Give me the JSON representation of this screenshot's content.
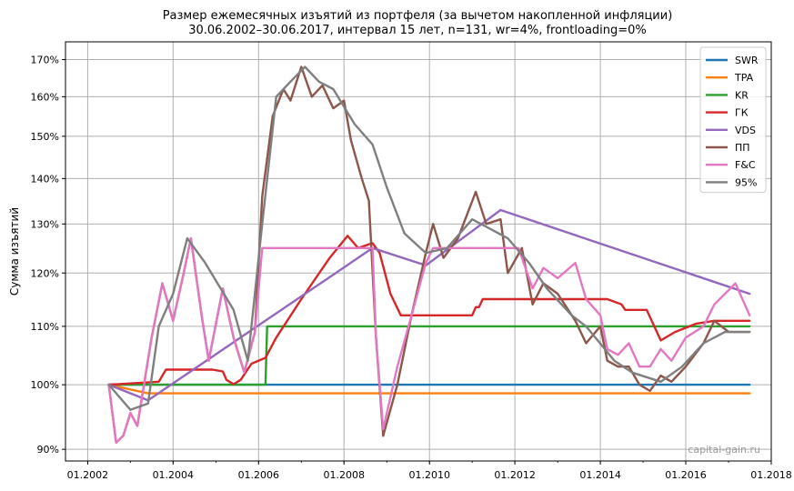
{
  "chart_data": {
    "type": "line",
    "title": "Размер ежемесячных изъятий из портфеля (за вычетом накопленной инфляции)",
    "subtitle": "30.06.2002–30.06.2017, интервал 15 лет, n=131, wr=4%, frontloading=0%",
    "ylabel": "Сумма изъятий",
    "xlabel": "",
    "y_scale": "log",
    "ylim": [
      88.3,
      175
    ],
    "xlim": [
      "2001-06-25",
      "2018-01-01"
    ],
    "x_ticks": [
      {
        "date": "2002-01-01",
        "label": "01.2002"
      },
      {
        "date": "2004-01-01",
        "label": "01.2004"
      },
      {
        "date": "2006-01-01",
        "label": "01.2006"
      },
      {
        "date": "2008-01-01",
        "label": "01.2008"
      },
      {
        "date": "2010-01-01",
        "label": "01.2010"
      },
      {
        "date": "2012-01-01",
        "label": "01.2012"
      },
      {
        "date": "2014-01-01",
        "label": "01.2014"
      },
      {
        "date": "2016-01-01",
        "label": "01.2016"
      },
      {
        "date": "2018-01-01",
        "label": "01.2018"
      }
    ],
    "y_ticks": [
      {
        "value": 90,
        "label": "90%"
      },
      {
        "value": 100,
        "label": "100%"
      },
      {
        "value": 110,
        "label": "110%"
      },
      {
        "value": 120,
        "label": "120%"
      },
      {
        "value": 130,
        "label": "130%"
      },
      {
        "value": 140,
        "label": "140%"
      },
      {
        "value": 150,
        "label": "150%"
      },
      {
        "value": 160,
        "label": "160%"
      },
      {
        "value": 170,
        "label": "170%"
      }
    ],
    "grid": true,
    "legend_position": "top-right",
    "watermark": "capital-gain.ru",
    "series": [
      {
        "name": "SWR",
        "color": "#1f77b4",
        "points": [
          [
            "2002-06-30",
            100
          ],
          [
            "2017-06-30",
            100
          ]
        ]
      },
      {
        "name": "TPA",
        "color": "#ff7f0e",
        "points": [
          [
            "2002-06-30",
            100
          ],
          [
            "2003-06-01",
            98.6
          ],
          [
            "2017-06-30",
            98.6
          ]
        ]
      },
      {
        "name": "KR",
        "color": "#2ca02c",
        "points": [
          [
            "2002-06-30",
            100
          ],
          [
            "2006-03-01",
            100
          ],
          [
            "2006-03-15",
            110
          ],
          [
            "2017-06-30",
            110
          ]
        ]
      },
      {
        "name": "ГК",
        "color": "#d62728",
        "points": [
          [
            "2002-06-30",
            100
          ],
          [
            "2003-09-01",
            100.5
          ],
          [
            "2003-11-01",
            102.5
          ],
          [
            "2004-12-01",
            102.5
          ],
          [
            "2005-03-01",
            102.2
          ],
          [
            "2005-04-01",
            100.8
          ],
          [
            "2005-06-01",
            100.1
          ],
          [
            "2005-08-01",
            100.8
          ],
          [
            "2005-11-01",
            103.5
          ],
          [
            "2006-03-01",
            104.5
          ],
          [
            "2006-06-01",
            108
          ],
          [
            "2007-01-01",
            115
          ],
          [
            "2007-09-01",
            123
          ],
          [
            "2008-02-01",
            127.5
          ],
          [
            "2008-05-01",
            125
          ],
          [
            "2008-09-01",
            126
          ],
          [
            "2008-11-01",
            124
          ],
          [
            "2009-02-01",
            116
          ],
          [
            "2009-05-01",
            112
          ],
          [
            "2009-09-01",
            112
          ],
          [
            "2010-01-01",
            112
          ],
          [
            "2011-01-01",
            112
          ],
          [
            "2011-02-01",
            113.5
          ],
          [
            "2011-03-01",
            113.5
          ],
          [
            "2011-04-01",
            115
          ],
          [
            "2012-06-01",
            115
          ],
          [
            "2013-01-01",
            115
          ],
          [
            "2014-03-01",
            115
          ],
          [
            "2014-07-01",
            114
          ],
          [
            "2014-08-01",
            113
          ],
          [
            "2015-02-01",
            113
          ],
          [
            "2015-06-01",
            107.5
          ],
          [
            "2015-10-01",
            109
          ],
          [
            "2016-04-01",
            110.5
          ],
          [
            "2016-09-01",
            111
          ],
          [
            "2017-06-30",
            111
          ]
        ]
      },
      {
        "name": "VDS",
        "color": "#9467bd",
        "points": [
          [
            "2002-06-30",
            100
          ],
          [
            "2003-06-01",
            97.5
          ],
          [
            "2008-09-01",
            125
          ],
          [
            "2009-12-01",
            121.5
          ],
          [
            "2011-09-01",
            133
          ],
          [
            "2017-06-30",
            116
          ]
        ]
      },
      {
        "name": "ПП",
        "color": "#8c564b",
        "points": [
          [
            "2002-06-30",
            100
          ],
          [
            "2002-09-01",
            91
          ],
          [
            "2002-11-01",
            92
          ],
          [
            "2003-01-01",
            95.5
          ],
          [
            "2003-03-01",
            93.5
          ],
          [
            "2003-07-01",
            108
          ],
          [
            "2003-10-01",
            118
          ],
          [
            "2004-01-01",
            111
          ],
          [
            "2004-04-01",
            120
          ],
          [
            "2004-06-01",
            127
          ],
          [
            "2004-09-01",
            112
          ],
          [
            "2004-11-01",
            104
          ],
          [
            "2005-03-01",
            117
          ],
          [
            "2005-06-01",
            108
          ],
          [
            "2005-09-01",
            102
          ],
          [
            "2005-12-01",
            109
          ],
          [
            "2006-02-01",
            136
          ],
          [
            "2006-05-01",
            155
          ],
          [
            "2006-08-01",
            162
          ],
          [
            "2006-10-01",
            159
          ],
          [
            "2007-01-01",
            168
          ],
          [
            "2007-04-01",
            160
          ],
          [
            "2007-07-01",
            163
          ],
          [
            "2007-10-01",
            157
          ],
          [
            "2008-01-01",
            159
          ],
          [
            "2008-03-01",
            149
          ],
          [
            "2008-06-01",
            140
          ],
          [
            "2008-08-01",
            135
          ],
          [
            "2008-10-01",
            108
          ],
          [
            "2008-12-01",
            92
          ],
          [
            "2009-04-01",
            100
          ],
          [
            "2009-08-01",
            112
          ],
          [
            "2009-12-01",
            124
          ],
          [
            "2010-02-01",
            130
          ],
          [
            "2010-05-01",
            123
          ],
          [
            "2010-09-01",
            127
          ],
          [
            "2011-02-01",
            137
          ],
          [
            "2011-05-01",
            130
          ],
          [
            "2011-09-01",
            131
          ],
          [
            "2011-11-01",
            120
          ],
          [
            "2012-03-01",
            125
          ],
          [
            "2012-06-01",
            114
          ],
          [
            "2012-09-01",
            118
          ],
          [
            "2013-01-01",
            116
          ],
          [
            "2013-06-01",
            111
          ],
          [
            "2013-09-01",
            107
          ],
          [
            "2014-01-01",
            110
          ],
          [
            "2014-03-01",
            104
          ],
          [
            "2014-06-01",
            103
          ],
          [
            "2014-09-01",
            103
          ],
          [
            "2014-12-01",
            100
          ],
          [
            "2015-03-01",
            99
          ],
          [
            "2015-06-01",
            101.5
          ],
          [
            "2015-09-01",
            100.5
          ],
          [
            "2016-01-01",
            103
          ],
          [
            "2016-06-01",
            107
          ],
          [
            "2016-09-01",
            111
          ],
          [
            "2017-01-01",
            109
          ],
          [
            "2017-06-30",
            109
          ]
        ]
      },
      {
        "name": "F&C",
        "color": "#e377c2",
        "points": [
          [
            "2002-06-30",
            100
          ],
          [
            "2002-09-01",
            91
          ],
          [
            "2002-11-01",
            92
          ],
          [
            "2003-01-01",
            95.5
          ],
          [
            "2003-03-01",
            93.5
          ],
          [
            "2003-07-01",
            108
          ],
          [
            "2003-10-01",
            118
          ],
          [
            "2004-01-01",
            111
          ],
          [
            "2004-04-01",
            120
          ],
          [
            "2004-06-01",
            127
          ],
          [
            "2004-09-01",
            112
          ],
          [
            "2004-11-01",
            104
          ],
          [
            "2005-03-01",
            117
          ],
          [
            "2005-06-01",
            108
          ],
          [
            "2005-09-01",
            102
          ],
          [
            "2005-12-01",
            109
          ],
          [
            "2006-02-01",
            125
          ],
          [
            "2008-09-01",
            125
          ],
          [
            "2008-10-01",
            108
          ],
          [
            "2008-12-01",
            93
          ],
          [
            "2009-04-01",
            103
          ],
          [
            "2009-08-01",
            112
          ],
          [
            "2009-12-01",
            122
          ],
          [
            "2010-02-01",
            125
          ],
          [
            "2011-11-01",
            125
          ],
          [
            "2012-02-01",
            125
          ],
          [
            "2012-06-01",
            117
          ],
          [
            "2012-09-01",
            121
          ],
          [
            "2013-01-01",
            119
          ],
          [
            "2013-06-01",
            122
          ],
          [
            "2013-09-01",
            115
          ],
          [
            "2014-01-01",
            112
          ],
          [
            "2014-03-01",
            106
          ],
          [
            "2014-06-01",
            105
          ],
          [
            "2014-09-01",
            107
          ],
          [
            "2014-12-01",
            103
          ],
          [
            "2015-03-01",
            103
          ],
          [
            "2015-06-01",
            106
          ],
          [
            "2015-09-01",
            104
          ],
          [
            "2016-01-01",
            108
          ],
          [
            "2016-06-01",
            110
          ],
          [
            "2016-09-01",
            114
          ],
          [
            "2017-03-01",
            118
          ],
          [
            "2017-06-30",
            112
          ]
        ]
      },
      {
        "name": "95%",
        "color": "#7f7f7f",
        "points": [
          [
            "2002-06-30",
            100
          ],
          [
            "2003-01-01",
            96
          ],
          [
            "2003-06-01",
            97
          ],
          [
            "2003-09-01",
            110
          ],
          [
            "2004-01-01",
            116
          ],
          [
            "2004-05-01",
            127
          ],
          [
            "2004-10-01",
            122
          ],
          [
            "2005-06-01",
            113
          ],
          [
            "2005-10-01",
            104
          ],
          [
            "2006-02-01",
            130
          ],
          [
            "2006-06-01",
            160
          ],
          [
            "2006-10-01",
            164
          ],
          [
            "2007-02-01",
            168
          ],
          [
            "2007-06-01",
            164
          ],
          [
            "2007-10-01",
            162
          ],
          [
            "2008-04-01",
            153
          ],
          [
            "2008-09-01",
            148
          ],
          [
            "2009-01-01",
            138
          ],
          [
            "2009-06-01",
            128
          ],
          [
            "2009-12-01",
            124
          ],
          [
            "2010-06-01",
            125
          ],
          [
            "2011-01-01",
            131
          ],
          [
            "2011-06-01",
            129
          ],
          [
            "2011-11-01",
            127
          ],
          [
            "2012-05-01",
            122
          ],
          [
            "2012-10-01",
            117
          ],
          [
            "2013-05-01",
            112
          ],
          [
            "2013-09-01",
            110
          ],
          [
            "2014-05-01",
            104
          ],
          [
            "2014-10-01",
            102
          ],
          [
            "2015-06-01",
            100.5
          ],
          [
            "2015-12-01",
            103
          ],
          [
            "2016-06-01",
            107
          ],
          [
            "2016-12-01",
            109
          ],
          [
            "2017-06-30",
            109
          ]
        ]
      }
    ]
  }
}
